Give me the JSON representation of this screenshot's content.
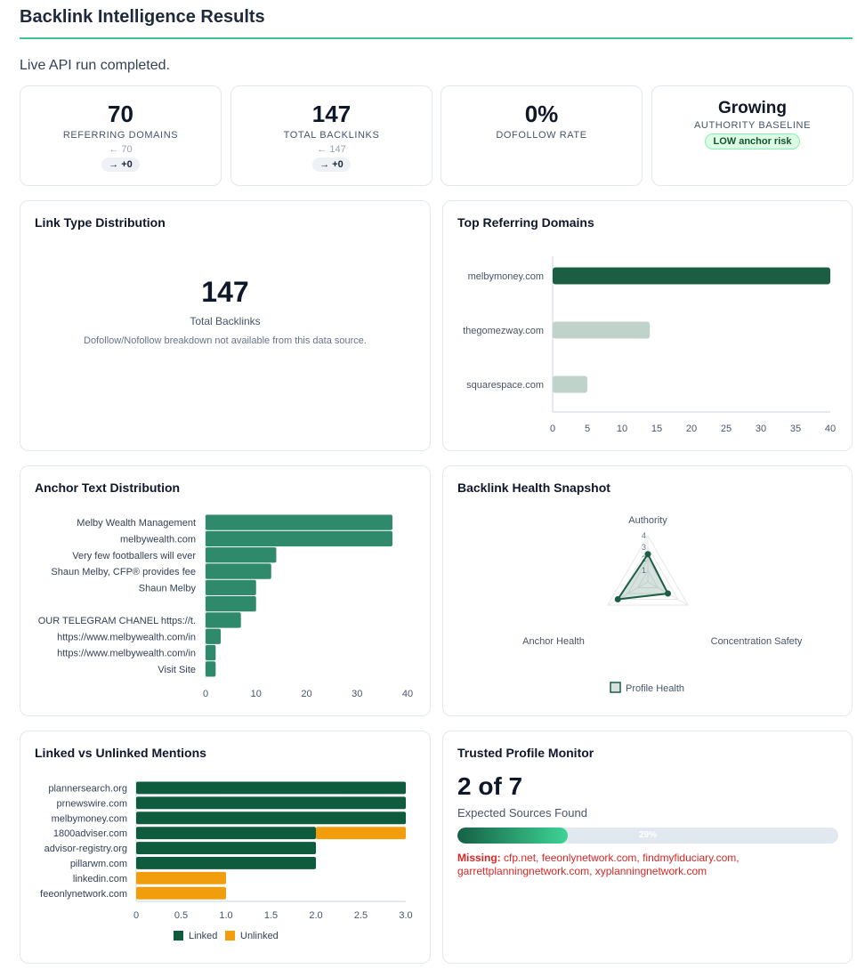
{
  "page": {
    "title": "Backlink Intelligence Results",
    "status": "Live API run completed."
  },
  "kpis": {
    "referring_domains": {
      "value": "70",
      "label": "REFERRING DOMAINS",
      "prev": "← 70",
      "delta": "→ +0"
    },
    "total_backlinks": {
      "value": "147",
      "label": "TOTAL BACKLINKS",
      "prev": "← 147",
      "delta": "→ +0"
    },
    "dofollow_rate": {
      "value": "0%",
      "label": "DOFOLLOW RATE"
    },
    "authority": {
      "value": "Growing",
      "label": "AUTHORITY BASELINE",
      "badge": "LOW anchor risk"
    }
  },
  "link_type": {
    "title": "Link Type Distribution",
    "value": "147",
    "label": "Total Backlinks",
    "note": "Dofollow/Nofollow breakdown not available from this data source."
  },
  "top_domains": {
    "title": "Top Referring Domains"
  },
  "anchor_text": {
    "title": "Anchor Text Distribution"
  },
  "health": {
    "title": "Backlink Health Snapshot"
  },
  "mentions": {
    "title": "Linked vs Unlinked Mentions"
  },
  "trusted_profiles": {
    "title": "Trusted Profile Monitor",
    "count": "2 of 7",
    "label": "Expected Sources Found",
    "progress": 0.29,
    "progress_label": "29%",
    "missing_label": "Missing:",
    "missing_list": "cfp.net, feeonlynetwork.com, findmyfiduciary.com, garrettplanningnetwork.com, xyplanningnetwork.com"
  },
  "colors": {
    "primary": "#1b5e43",
    "light": "#c0d3cb",
    "anchor": "#2f8a6b",
    "linked": "#0f5b3e",
    "unlinked": "#f29e0c"
  },
  "chart_data": [
    {
      "id": "top_domains",
      "type": "bar",
      "orientation": "horizontal",
      "title": "Top Referring Domains",
      "categories": [
        "melbymoney.com",
        "thegomezway.com",
        "squarespace.com"
      ],
      "values": [
        40,
        14,
        5
      ],
      "xlim": [
        0,
        40
      ],
      "ticks": [
        0,
        5,
        10,
        15,
        20,
        25,
        30,
        35,
        40
      ]
    },
    {
      "id": "anchor_text",
      "type": "bar",
      "orientation": "horizontal",
      "title": "Anchor Text Distribution",
      "categories": [
        "Melby Wealth Management",
        "melbywealth.com",
        "Very few footballers will ever",
        "Shaun Melby, CFP® provides fee",
        "Shaun Melby",
        "",
        "OUR TELEGRAM CHANEL https://t.",
        "https://www.melbywealth.com/in",
        "https://www.melbywealth.com/in",
        "Visit Site"
      ],
      "values": [
        37,
        37,
        14,
        13,
        10,
        10,
        7,
        3,
        2,
        2
      ],
      "xlim": [
        0,
        40
      ],
      "ticks": [
        0,
        10,
        20,
        30,
        40
      ]
    },
    {
      "id": "health",
      "type": "radar",
      "title": "Backlink Health Snapshot",
      "axes": [
        "Authority",
        "Concentration Safety",
        "Anchor Health"
      ],
      "series": [
        {
          "name": "Profile Health",
          "values": [
            2.4,
            2.0,
            3.0
          ]
        }
      ],
      "rlim": [
        0,
        4
      ],
      "ticks": [
        1,
        2,
        3,
        4
      ]
    },
    {
      "id": "mentions",
      "type": "bar",
      "orientation": "horizontal",
      "stacked": true,
      "title": "Linked vs Unlinked Mentions",
      "categories": [
        "plannersearch.org",
        "prnewswire.com",
        "melbymoney.com",
        "1800adviser.com",
        "advisor-registry.org",
        "pillarwm.com",
        "linkedin.com",
        "feeonlynetwork.com"
      ],
      "series": [
        {
          "name": "Linked",
          "values": [
            3,
            3,
            3,
            2,
            2,
            2,
            0,
            0
          ]
        },
        {
          "name": "Unlinked",
          "values": [
            0,
            0,
            0,
            1,
            0,
            0,
            1,
            1
          ]
        }
      ],
      "xlim": [
        0,
        3
      ],
      "ticks": [
        "0",
        "0.5",
        "1.0",
        "1.5",
        "2.0",
        "2.5",
        "3.0"
      ]
    }
  ]
}
